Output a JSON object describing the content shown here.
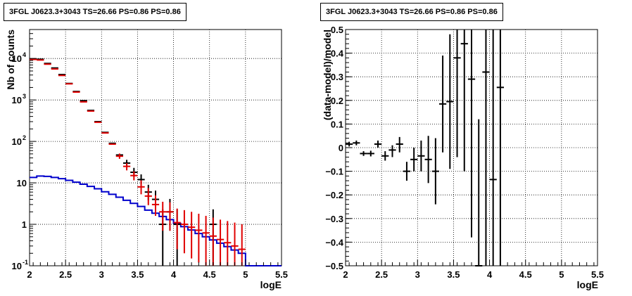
{
  "chart_data": [
    {
      "type": "histogram",
      "title": "3FGL J0623.3+3043 TS=26.66 PS=0.86 PS=0.86",
      "xlabel": "logE",
      "ylabel": "Nb of counts",
      "xlim": [
        2,
        5.5
      ],
      "ylim": [
        0.1,
        50000
      ],
      "log_y": true,
      "grid": true,
      "x_ticks": [
        "2",
        "2.5",
        "3",
        "3.5",
        "4",
        "4.5",
        "5",
        "5.5"
      ],
      "y_ticks": [
        {
          "value": 0.1,
          "label": "10",
          "exp": "-1"
        },
        {
          "value": 1,
          "label": "1",
          "exp": ""
        },
        {
          "value": 10,
          "label": "10",
          "exp": ""
        },
        {
          "value": 100,
          "label": "10",
          "exp": "2"
        },
        {
          "value": 1000,
          "label": "10",
          "exp": "3"
        },
        {
          "value": 10000,
          "label": "10",
          "exp": "4"
        }
      ],
      "series": [
        {
          "color": "#000000",
          "points": [
            {
              "x": 2.05,
              "y": 9800
            },
            {
              "x": 2.15,
              "y": 9600
            },
            {
              "x": 2.25,
              "y": 7600
            },
            {
              "x": 2.35,
              "y": 5900
            },
            {
              "x": 2.45,
              "y": 4100
            },
            {
              "x": 2.55,
              "y": 2500
            },
            {
              "x": 2.65,
              "y": 1600
            },
            {
              "x": 2.75,
              "y": 960
            },
            {
              "x": 2.85,
              "y": 560
            },
            {
              "x": 2.95,
              "y": 300
            },
            {
              "x": 3.05,
              "y": 165
            },
            {
              "x": 3.15,
              "y": 90
            },
            {
              "x": 3.25,
              "y": 47
            },
            {
              "x": 3.35,
              "y": 30,
              "ylo": 24,
              "yhi": 36
            },
            {
              "x": 3.45,
              "y": 18,
              "ylo": 14,
              "yhi": 23
            },
            {
              "x": 3.55,
              "y": 12,
              "ylo": 8.5,
              "yhi": 16
            },
            {
              "x": 3.65,
              "y": 6,
              "ylo": 3.8,
              "yhi": 9
            },
            {
              "x": 3.75,
              "y": 4,
              "ylo": 2.3,
              "yhi": 6.5
            },
            {
              "x": 3.85,
              "y": 1,
              "ylo": 0.1,
              "yhi": 2.3
            },
            {
              "x": 3.95,
              "y": 2,
              "ylo": 0.7,
              "yhi": 4.1
            },
            {
              "x": 4.05,
              "y": 1,
              "ylo": 0.1,
              "yhi": 2.3
            },
            {
              "x": 4.55,
              "y": 1,
              "ylo": 0.1,
              "yhi": 2.3
            }
          ]
        },
        {
          "color": "#e00000",
          "points": [
            {
              "x": 2.05,
              "y": 9500
            },
            {
              "x": 2.15,
              "y": 9200
            },
            {
              "x": 2.25,
              "y": 7300
            },
            {
              "x": 2.35,
              "y": 5600
            },
            {
              "x": 2.45,
              "y": 3900
            },
            {
              "x": 2.55,
              "y": 2450
            },
            {
              "x": 2.65,
              "y": 1550
            },
            {
              "x": 2.75,
              "y": 900
            },
            {
              "x": 2.85,
              "y": 540
            },
            {
              "x": 2.95,
              "y": 290
            },
            {
              "x": 3.05,
              "y": 160
            },
            {
              "x": 3.15,
              "y": 86
            },
            {
              "x": 3.25,
              "y": 44,
              "ylo": 38,
              "yhi": 51
            },
            {
              "x": 3.35,
              "y": 25,
              "ylo": 20,
              "yhi": 30
            },
            {
              "x": 3.45,
              "y": 15,
              "ylo": 11.5,
              "yhi": 19
            },
            {
              "x": 3.55,
              "y": 8,
              "ylo": 5.3,
              "yhi": 11.5
            },
            {
              "x": 3.65,
              "y": 4.8,
              "ylo": 2.9,
              "yhi": 7.5
            },
            {
              "x": 3.75,
              "y": 3,
              "ylo": 1.6,
              "yhi": 5
            },
            {
              "x": 3.85,
              "y": 2,
              "ylo": 0.7,
              "yhi": 3.5
            },
            {
              "x": 3.95,
              "y": 2,
              "ylo": 0.7,
              "yhi": 3.4
            },
            {
              "x": 4.05,
              "y": 1.1,
              "ylo": 0.25,
              "yhi": 2.4
            },
            {
              "x": 4.15,
              "y": 1,
              "ylo": 0.2,
              "yhi": 2.2
            },
            {
              "x": 4.25,
              "y": 0.85,
              "ylo": 0.15,
              "yhi": 2
            },
            {
              "x": 4.35,
              "y": 0.72,
              "ylo": 0.12,
              "yhi": 1.8
            },
            {
              "x": 4.45,
              "y": 0.62,
              "ylo": 0.1,
              "yhi": 1.6
            },
            {
              "x": 4.55,
              "y": 0.52,
              "ylo": 0.1,
              "yhi": 1.45
            },
            {
              "x": 4.65,
              "y": 0.43,
              "ylo": 0.1,
              "yhi": 1.3
            },
            {
              "x": 4.75,
              "y": 0.36,
              "ylo": 0.1,
              "yhi": 1.2
            },
            {
              "x": 4.85,
              "y": 0.3,
              "ylo": 0.1,
              "yhi": 1.1
            },
            {
              "x": 4.95,
              "y": 0.25,
              "ylo": 0.1,
              "yhi": 1
            }
          ]
        },
        {
          "type": "step",
          "color": "#0000cc",
          "edges": [
            2.0,
            2.1,
            2.2,
            2.3,
            2.4,
            2.5,
            2.6,
            2.7,
            2.8,
            2.9,
            3.0,
            3.1,
            3.2,
            3.3,
            3.4,
            3.5,
            3.6,
            3.7,
            3.8,
            3.9,
            4.0,
            4.1,
            4.2,
            4.3,
            4.4,
            4.5,
            4.6,
            4.7,
            4.8,
            4.9,
            5.0,
            5.1,
            5.2,
            5.3,
            5.4,
            5.5
          ],
          "values": [
            13.5,
            14.6,
            14.3,
            13.5,
            12.6,
            11.5,
            10.4,
            9.3,
            8.2,
            7.2,
            6.1,
            5.3,
            4.5,
            3.8,
            3.2,
            2.7,
            2.2,
            1.85,
            1.55,
            1.3,
            1.05,
            0.88,
            0.73,
            0.6,
            0.5,
            0.42,
            0.35,
            0.29,
            0.24,
            0.2,
            0.1,
            0.1,
            0.1,
            0.1,
            0.1
          ]
        }
      ]
    },
    {
      "type": "scatter",
      "title": "3FGL J0623.3+3043 TS=26.66 PS=0.86 PS=0.86",
      "xlabel": "logE",
      "ylabel": "(data-model)/model",
      "xlim": [
        2,
        5.5
      ],
      "ylim": [
        -0.5,
        0.5
      ],
      "grid": true,
      "x_ticks": [
        "2",
        "2.5",
        "3",
        "3.5",
        "4",
        "4.5",
        "5",
        "5.5"
      ],
      "y_ticks": [
        "−0.5",
        "−0.4",
        "−0.3",
        "−0.2",
        "−0.1",
        "0",
        "0.1",
        "0.2",
        "0.3",
        "0.4",
        "0.5"
      ],
      "points": [
        {
          "x": 2.05,
          "y": 0.015,
          "ylo": 0.005,
          "yhi": 0.025
        },
        {
          "x": 2.15,
          "y": 0.02,
          "ylo": 0.01,
          "yhi": 0.03
        },
        {
          "x": 2.25,
          "y": -0.025,
          "ylo": -0.035,
          "yhi": -0.015
        },
        {
          "x": 2.35,
          "y": -0.025,
          "ylo": -0.037,
          "yhi": -0.013
        },
        {
          "x": 2.45,
          "y": 0.015,
          "ylo": 0.0,
          "yhi": 0.03
        },
        {
          "x": 2.55,
          "y": -0.035,
          "ylo": -0.055,
          "yhi": -0.015
        },
        {
          "x": 2.65,
          "y": -0.01,
          "ylo": -0.04,
          "yhi": 0.01
        },
        {
          "x": 2.75,
          "y": 0.015,
          "ylo": -0.02,
          "yhi": 0.045
        },
        {
          "x": 2.85,
          "y": -0.1,
          "ylo": -0.14,
          "yhi": -0.06
        },
        {
          "x": 2.95,
          "y": -0.05,
          "ylo": -0.1,
          "yhi": 0.0
        },
        {
          "x": 3.05,
          "y": -0.035,
          "ylo": -0.1,
          "yhi": 0.03
        },
        {
          "x": 3.15,
          "y": -0.05,
          "ylo": -0.15,
          "yhi": 0.05
        },
        {
          "x": 3.25,
          "y": -0.1,
          "ylo": -0.24,
          "yhi": 0.04
        },
        {
          "x": 3.35,
          "y": 0.185,
          "ylo": -0.02,
          "yhi": 0.39
        },
        {
          "x": 3.45,
          "y": 0.195,
          "ylo": -0.09,
          "yhi": 0.48
        },
        {
          "x": 3.55,
          "y": 0.38,
          "ylo": -0.04,
          "yhi": 0.8
        },
        {
          "x": 3.65,
          "y": 0.44,
          "ylo": -0.1,
          "yhi": 0.98
        },
        {
          "x": 3.75,
          "y": 0.29,
          "ylo": -0.38,
          "yhi": 0.96
        },
        {
          "x": 3.85,
          "y": -0.5,
          "ylo": -0.9,
          "yhi": 0.12
        },
        {
          "x": 3.95,
          "y": 0.32,
          "ylo": -0.7,
          "yhi": 1.34
        },
        {
          "x": 4.05,
          "y": -0.135,
          "ylo": -0.9,
          "yhi": 0.63
        },
        {
          "x": 4.15,
          "y": 0.255,
          "ylo": -0.9,
          "yhi": 1.41
        }
      ]
    }
  ]
}
